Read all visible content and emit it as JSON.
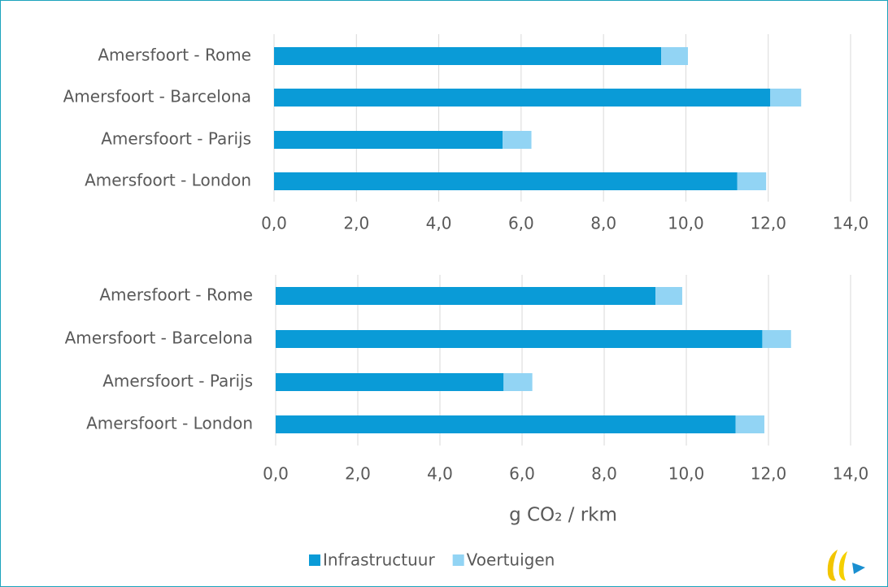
{
  "chart_data": [
    {
      "type": "stacked-barh",
      "categories": [
        "Amersfoort - Rome",
        "Amersfoort - Barcelona",
        "Amersfoort - Parijs",
        "Amersfoort - London"
      ],
      "series": [
        {
          "color": "#0a9bd7",
          "values": [
            9.4,
            12.05,
            5.55,
            11.25
          ]
        },
        {
          "color": "#92d4f4",
          "values": [
            0.65,
            0.75,
            0.7,
            0.7
          ]
        }
      ],
      "xlim": [
        0,
        14
      ],
      "xticks": [
        {
          "value": 0,
          "label": "0,0"
        },
        {
          "value": 2,
          "label": "2,0"
        },
        {
          "value": 4,
          "label": "4,0"
        },
        {
          "value": 6,
          "label": "6,0"
        },
        {
          "value": 8,
          "label": "8,0"
        },
        {
          "value": 10,
          "label": "10,0"
        },
        {
          "value": 12,
          "label": "12,0"
        },
        {
          "value": 14,
          "label": "14,0"
        }
      ],
      "grid": true
    },
    {
      "type": "stacked-barh",
      "categories": [
        "Amersfoort - Rome",
        "Amersfoort - Barcelona",
        "Amersfoort - Parijs",
        "Amersfoort - London"
      ],
      "series": [
        {
          "name": "Infrastructuur",
          "color": "#0a9bd7",
          "values": [
            9.25,
            11.85,
            5.55,
            11.2
          ]
        },
        {
          "name": "Voertuigen",
          "color": "#92d4f4",
          "values": [
            0.65,
            0.7,
            0.7,
            0.7
          ]
        }
      ],
      "xlim": [
        0,
        14
      ],
      "xticks": [
        {
          "value": 0,
          "label": "0,0"
        },
        {
          "value": 2,
          "label": "2,0"
        },
        {
          "value": 4,
          "label": "4,0"
        },
        {
          "value": 6,
          "label": "6,0"
        },
        {
          "value": 8,
          "label": "8,0"
        },
        {
          "value": 10,
          "label": "10,0"
        },
        {
          "value": 12,
          "label": "12,0"
        },
        {
          "value": 14,
          "label": "14,0"
        }
      ],
      "grid": true,
      "x_label": "g CO₂ / rkm",
      "legend": "bottom"
    }
  ]
}
